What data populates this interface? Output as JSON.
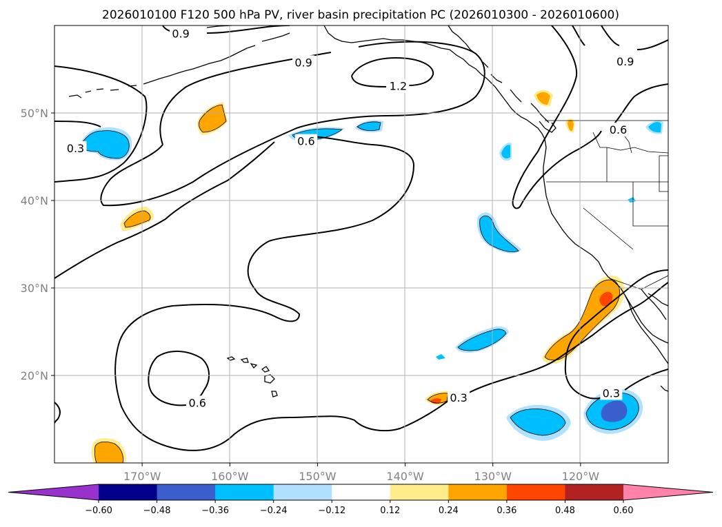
{
  "chart_data": {
    "type": "contour-map",
    "title": "2026010100 F120 500 hPa PV, river basin precipitation PC (2026010300 - 2026010600)",
    "lon_ticks": [
      "170°W",
      "160°W",
      "150°W",
      "140°W",
      "130°W",
      "120°W"
    ],
    "lat_ticks": [
      "50°N",
      "40°N",
      "30°N",
      "20°N"
    ],
    "lon_values": [
      -170,
      -160,
      -150,
      -140,
      -130,
      -120
    ],
    "lat_values": [
      50,
      40,
      30,
      20
    ],
    "lon_range": [
      -180,
      -110
    ],
    "lat_range": [
      10,
      60
    ],
    "grid": true,
    "pv_contour_levels": [
      0.3,
      0.6,
      0.9,
      1.2
    ],
    "pv_contour_labels": [
      {
        "text": "0.9",
        "lon": -165.6,
        "lat": 59.1
      },
      {
        "text": "0.9",
        "lon": -151.6,
        "lat": 55.8
      },
      {
        "text": "0.9",
        "lon": -114.9,
        "lat": 55.9
      },
      {
        "text": "1.2",
        "lon": -140.8,
        "lat": 53.1
      },
      {
        "text": "0.6",
        "lon": -151.3,
        "lat": 46.8
      },
      {
        "text": "0.6",
        "lon": -115.7,
        "lat": 48.1
      },
      {
        "text": "0.3",
        "lon": -177.6,
        "lat": 46.0
      },
      {
        "text": "0.6",
        "lon": -163.7,
        "lat": 16.9
      },
      {
        "text": "0.3",
        "lon": -133.9,
        "lat": 17.5
      },
      {
        "text": "0.3",
        "lon": -116.5,
        "lat": 18.0
      }
    ],
    "colorbar": {
      "ticks": [
        "−0.60",
        "−0.48",
        "−0.36",
        "−0.24",
        "−0.12",
        "0.12",
        "0.24",
        "0.36",
        "0.48",
        "0.60"
      ],
      "levels": [
        -0.6,
        -0.48,
        -0.36,
        -0.24,
        -0.12,
        0.12,
        0.24,
        0.36,
        0.48,
        0.6
      ],
      "colors": [
        "#9932CC",
        "#00008B",
        "#3A5FCD",
        "#00BFFF",
        "#B0E2FF",
        "#FFFFFF",
        "#FFEC8B",
        "#FFA500",
        "#FF4500",
        "#B22222",
        "#FF82AB"
      ],
      "extend": "both"
    }
  }
}
